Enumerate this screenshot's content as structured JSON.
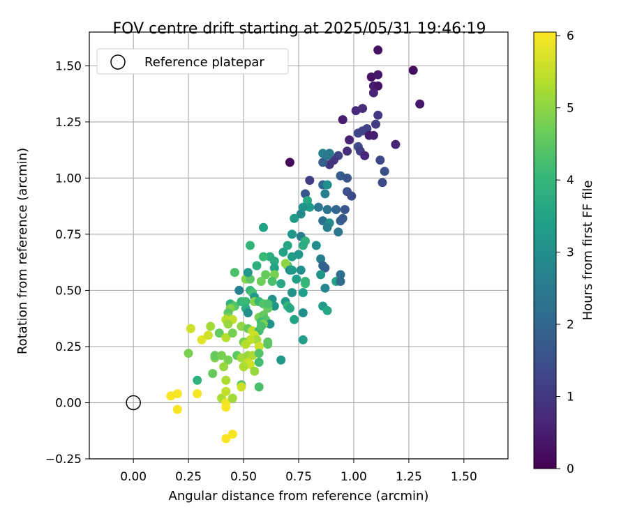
{
  "chart_data": {
    "type": "scatter",
    "title": "FOV centre drift starting at 2025/05/31 19:46:19",
    "xlabel": "Angular distance from reference (arcmin)",
    "ylabel": "Rotation from reference (arcmin)",
    "xlim": [
      -0.2,
      1.7
    ],
    "ylim": [
      -0.25,
      1.65
    ],
    "xticks": [
      "0.00",
      "0.25",
      "0.50",
      "0.75",
      "1.00",
      "1.25",
      "1.50"
    ],
    "yticks": [
      "−0.25",
      "0.00",
      "0.25",
      "0.50",
      "0.75",
      "1.00",
      "1.25",
      "1.50"
    ],
    "grid": true,
    "legend": {
      "placement": "top-left",
      "entries": [
        "Reference platepar"
      ]
    },
    "reference_point": [
      0.0,
      0.0
    ],
    "colorbar": {
      "label": "Hours from first FF file",
      "range": [
        0,
        6.05
      ],
      "ticks": [
        "0",
        "1",
        "2",
        "3",
        "4",
        "5",
        "6"
      ],
      "colormap": "viridis"
    },
    "points": [
      [
        1.11,
        1.57,
        0.3
      ],
      [
        1.27,
        1.48,
        0.2
      ],
      [
        1.3,
        1.33,
        0.4
      ],
      [
        1.08,
        1.45,
        0.3
      ],
      [
        1.11,
        1.46,
        0.4
      ],
      [
        1.09,
        1.41,
        0.5
      ],
      [
        1.11,
        1.41,
        0.3
      ],
      [
        1.09,
        1.38,
        0.6
      ],
      [
        1.04,
        1.31,
        0.8
      ],
      [
        1.01,
        1.3,
        0.7
      ],
      [
        0.95,
        1.26,
        0.5
      ],
      [
        1.11,
        1.28,
        1.0
      ],
      [
        1.1,
        1.24,
        1.1
      ],
      [
        1.06,
        1.22,
        1.2
      ],
      [
        1.04,
        1.21,
        1.2
      ],
      [
        1.02,
        1.2,
        1.3
      ],
      [
        1.07,
        1.19,
        0.4
      ],
      [
        1.09,
        1.19,
        0.5
      ],
      [
        1.19,
        1.15,
        0.6
      ],
      [
        0.98,
        1.17,
        0.6
      ],
      [
        1.02,
        1.14,
        1.4
      ],
      [
        1.03,
        1.12,
        1.1
      ],
      [
        1.05,
        1.1,
        0.7
      ],
      [
        0.97,
        1.12,
        0.8
      ],
      [
        0.93,
        1.1,
        1.2
      ],
      [
        0.91,
        1.08,
        1.0
      ],
      [
        0.89,
        1.06,
        0.9
      ],
      [
        0.71,
        1.07,
        0.1
      ],
      [
        1.12,
        1.08,
        1.3
      ],
      [
        1.14,
        1.03,
        1.5
      ],
      [
        0.86,
        1.07,
        1.8
      ],
      [
        0.86,
        1.11,
        2.7
      ],
      [
        0.89,
        1.11,
        2.5
      ],
      [
        0.88,
        1.1,
        2.4
      ],
      [
        0.8,
        0.99,
        1.1
      ],
      [
        0.94,
        1.01,
        1.8
      ],
      [
        0.97,
        1.0,
        1.6
      ],
      [
        0.86,
        0.97,
        2.0
      ],
      [
        0.88,
        0.97,
        3.0
      ],
      [
        1.13,
        0.98,
        1.4
      ],
      [
        0.78,
        0.93,
        1.6
      ],
      [
        0.87,
        0.93,
        2.6
      ],
      [
        0.97,
        0.94,
        1.5
      ],
      [
        0.99,
        0.92,
        1.4
      ],
      [
        0.79,
        0.9,
        3.6
      ],
      [
        0.8,
        0.87,
        3.3
      ],
      [
        0.77,
        0.87,
        3.1
      ],
      [
        0.84,
        0.87,
        2.4
      ],
      [
        0.88,
        0.86,
        2.3
      ],
      [
        0.92,
        0.86,
        2.0
      ],
      [
        0.96,
        0.86,
        1.6
      ],
      [
        0.73,
        0.82,
        3.3
      ],
      [
        0.76,
        0.84,
        2.9
      ],
      [
        0.86,
        0.81,
        2.2
      ],
      [
        0.89,
        0.8,
        3.0
      ],
      [
        0.94,
        0.81,
        1.8
      ],
      [
        0.95,
        0.82,
        1.7
      ],
      [
        0.88,
        0.78,
        2.6
      ],
      [
        0.93,
        0.76,
        2.4
      ],
      [
        0.59,
        0.78,
        3.5
      ],
      [
        0.72,
        0.75,
        3.2
      ],
      [
        0.76,
        0.74,
        2.6
      ],
      [
        0.53,
        0.7,
        4.0
      ],
      [
        0.7,
        0.7,
        3.6
      ],
      [
        0.78,
        0.72,
        3.9
      ],
      [
        0.77,
        0.7,
        3.7
      ],
      [
        0.83,
        0.7,
        2.9
      ],
      [
        0.62,
        0.65,
        3.8
      ],
      [
        0.59,
        0.65,
        4.1
      ],
      [
        0.64,
        0.63,
        3.7
      ],
      [
        0.72,
        0.65,
        3.4
      ],
      [
        0.7,
        0.61,
        4.3
      ],
      [
        0.68,
        0.67,
        3.5
      ],
      [
        0.75,
        0.66,
        3.2
      ],
      [
        0.85,
        0.64,
        2.6
      ],
      [
        0.56,
        0.61,
        3.8
      ],
      [
        0.64,
        0.6,
        3.5
      ],
      [
        0.6,
        0.57,
        4.6
      ],
      [
        0.64,
        0.57,
        4.8
      ],
      [
        0.69,
        0.62,
        5.0
      ],
      [
        0.71,
        0.59,
        3.0
      ],
      [
        0.72,
        0.59,
        3.3
      ],
      [
        0.76,
        0.59,
        3.0
      ],
      [
        0.87,
        0.6,
        1.8
      ],
      [
        0.86,
        0.61,
        1.9
      ],
      [
        0.46,
        0.58,
        4.3
      ],
      [
        0.51,
        0.55,
        4.9
      ],
      [
        0.53,
        0.55,
        4.5
      ],
      [
        0.58,
        0.54,
        4.7
      ],
      [
        0.52,
        0.58,
        3.2
      ],
      [
        0.63,
        0.54,
        4.3
      ],
      [
        0.67,
        0.53,
        3.6
      ],
      [
        0.72,
        0.49,
        3.1
      ],
      [
        0.74,
        0.55,
        3.4
      ],
      [
        0.78,
        0.53,
        4.1
      ],
      [
        0.78,
        0.54,
        4.0
      ],
      [
        0.85,
        0.57,
        3.2
      ],
      [
        0.94,
        0.57,
        2.2
      ],
      [
        0.92,
        0.54,
        3.5
      ],
      [
        0.94,
        0.54,
        2.1
      ],
      [
        0.48,
        0.5,
        2.6
      ],
      [
        0.53,
        0.5,
        4.0
      ],
      [
        0.54,
        0.49,
        4.2
      ],
      [
        0.55,
        0.47,
        3.3
      ],
      [
        0.63,
        0.46,
        3.1
      ],
      [
        0.64,
        0.43,
        3.2
      ],
      [
        0.69,
        0.45,
        3.3
      ],
      [
        0.7,
        0.43,
        4.0
      ],
      [
        0.71,
        0.42,
        3.6
      ],
      [
        0.77,
        0.49,
        3.4
      ],
      [
        0.87,
        0.51,
        2.8
      ],
      [
        0.44,
        0.44,
        3.9
      ],
      [
        0.46,
        0.43,
        4.4
      ],
      [
        0.49,
        0.45,
        4.0
      ],
      [
        0.51,
        0.45,
        4.1
      ],
      [
        0.51,
        0.42,
        3.8
      ],
      [
        0.55,
        0.45,
        4.9
      ],
      [
        0.57,
        0.45,
        4.0
      ],
      [
        0.59,
        0.44,
        4.4
      ],
      [
        0.61,
        0.42,
        4.6
      ],
      [
        0.61,
        0.44,
        4.3
      ],
      [
        0.44,
        0.42,
        4.9
      ],
      [
        0.43,
        0.4,
        4.5
      ],
      [
        0.43,
        0.38,
        4.8
      ],
      [
        0.42,
        0.37,
        5.4
      ],
      [
        0.45,
        0.37,
        5.5
      ],
      [
        0.52,
        0.4,
        3.0
      ],
      [
        0.57,
        0.38,
        4.8
      ],
      [
        0.59,
        0.39,
        4.6
      ],
      [
        0.6,
        0.37,
        4.4
      ],
      [
        0.62,
        0.35,
        3.1
      ],
      [
        0.73,
        0.37,
        3.5
      ],
      [
        0.77,
        0.4,
        3.0
      ],
      [
        0.86,
        0.43,
        3.3
      ],
      [
        0.88,
        0.41,
        3.6
      ],
      [
        0.26,
        0.33,
        5.6
      ],
      [
        0.31,
        0.28,
        5.8
      ],
      [
        0.34,
        0.3,
        5.6
      ],
      [
        0.35,
        0.34,
        5.2
      ],
      [
        0.39,
        0.31,
        4.6
      ],
      [
        0.42,
        0.29,
        5.4
      ],
      [
        0.43,
        0.35,
        5.1
      ],
      [
        0.45,
        0.31,
        4.8
      ],
      [
        0.49,
        0.34,
        5.0
      ],
      [
        0.52,
        0.33,
        4.6
      ],
      [
        0.54,
        0.32,
        5.5
      ],
      [
        0.57,
        0.32,
        4.2
      ],
      [
        0.58,
        0.36,
        4.2
      ],
      [
        0.59,
        0.35,
        4.8
      ],
      [
        0.58,
        0.34,
        4.3
      ],
      [
        0.55,
        0.3,
        5.6
      ],
      [
        0.56,
        0.28,
        5.2
      ],
      [
        0.53,
        0.28,
        5.5
      ],
      [
        0.5,
        0.27,
        4.8
      ],
      [
        0.51,
        0.26,
        5.4
      ],
      [
        0.57,
        0.25,
        5.6
      ],
      [
        0.61,
        0.27,
        4.5
      ],
      [
        0.61,
        0.26,
        4.5
      ],
      [
        0.77,
        0.28,
        3.4
      ],
      [
        0.25,
        0.22,
        4.8
      ],
      [
        0.37,
        0.2,
        4.9
      ],
      [
        0.37,
        0.21,
        4.6
      ],
      [
        0.4,
        0.21,
        4.8
      ],
      [
        0.43,
        0.19,
        4.8
      ],
      [
        0.47,
        0.21,
        4.5
      ],
      [
        0.49,
        0.2,
        5.2
      ],
      [
        0.52,
        0.21,
        5.1
      ],
      [
        0.54,
        0.21,
        5.3
      ],
      [
        0.57,
        0.22,
        4.4
      ],
      [
        0.52,
        0.18,
        5.5
      ],
      [
        0.53,
        0.17,
        5.6
      ],
      [
        0.5,
        0.16,
        5.3
      ],
      [
        0.57,
        0.18,
        4.2
      ],
      [
        0.67,
        0.19,
        3.2
      ],
      [
        0.29,
        0.1,
        3.9
      ],
      [
        0.36,
        0.13,
        4.6
      ],
      [
        0.41,
        0.16,
        5.1
      ],
      [
        0.42,
        0.1,
        5.3
      ],
      [
        0.49,
        0.08,
        4.4
      ],
      [
        0.49,
        0.07,
        5.6
      ],
      [
        0.55,
        0.14,
        5.1
      ],
      [
        0.57,
        0.07,
        4.3
      ],
      [
        0.17,
        0.03,
        6.0
      ],
      [
        0.2,
        0.04,
        6.0
      ],
      [
        0.2,
        -0.03,
        6.0
      ],
      [
        0.29,
        0.04,
        6.0
      ],
      [
        0.4,
        0.02,
        5.3
      ],
      [
        0.42,
        0.0,
        5.9
      ],
      [
        0.42,
        -0.02,
        6.0
      ],
      [
        0.42,
        0.05,
        5.5
      ],
      [
        0.45,
        0.02,
        5.2
      ],
      [
        0.42,
        -0.16,
        6.0
      ],
      [
        0.45,
        -0.14,
        6.0
      ]
    ]
  }
}
